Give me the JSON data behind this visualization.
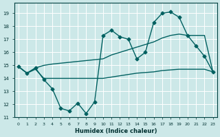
{
  "bg_color": "#cce8e8",
  "grid_color": "#ffffff",
  "line_color": "#006060",
  "xlabel": "Humidex (Indice chaleur)",
  "xlim": [
    -0.5,
    23.5
  ],
  "ylim": [
    11,
    19.8
  ],
  "yticks": [
    11,
    12,
    13,
    14,
    15,
    16,
    17,
    18,
    19
  ],
  "xticks": [
    0,
    1,
    2,
    3,
    4,
    5,
    6,
    7,
    8,
    9,
    10,
    11,
    12,
    13,
    14,
    15,
    16,
    17,
    18,
    19,
    20,
    21,
    22,
    23
  ],
  "line1_x": [
    0,
    1,
    2,
    3,
    4,
    5,
    6,
    7,
    8,
    9,
    10,
    11,
    12,
    13,
    14,
    15,
    16,
    17,
    18,
    19,
    20,
    21,
    22,
    23
  ],
  "line1_y": [
    14.9,
    14.4,
    14.8,
    13.9,
    13.2,
    11.7,
    11.5,
    12.1,
    11.3,
    12.2,
    17.3,
    17.7,
    17.2,
    17.0,
    15.5,
    16.0,
    18.3,
    19.0,
    19.1,
    18.7,
    17.3,
    16.5,
    15.7,
    14.5
  ],
  "line2_x": [
    0,
    1,
    2,
    3,
    4,
    10,
    11,
    12,
    13,
    14,
    15,
    16,
    17,
    18,
    19,
    20,
    21,
    22,
    23
  ],
  "line2_y": [
    14.9,
    14.4,
    14.8,
    15.0,
    15.1,
    15.5,
    15.8,
    16.0,
    16.2,
    16.4,
    16.6,
    16.8,
    17.1,
    17.3,
    17.4,
    17.3,
    17.3,
    17.3,
    14.5
  ],
  "line3_x": [
    0,
    1,
    2,
    3,
    4,
    10,
    11,
    12,
    13,
    14,
    15,
    16,
    17,
    18,
    19,
    20,
    21,
    22,
    23
  ],
  "line3_y": [
    14.9,
    14.4,
    14.7,
    14.0,
    14.0,
    14.0,
    14.1,
    14.2,
    14.3,
    14.4,
    14.45,
    14.5,
    14.6,
    14.65,
    14.7,
    14.7,
    14.7,
    14.7,
    14.5
  ],
  "marker": "D",
  "markersize": 2.5,
  "linewidth": 1.0
}
